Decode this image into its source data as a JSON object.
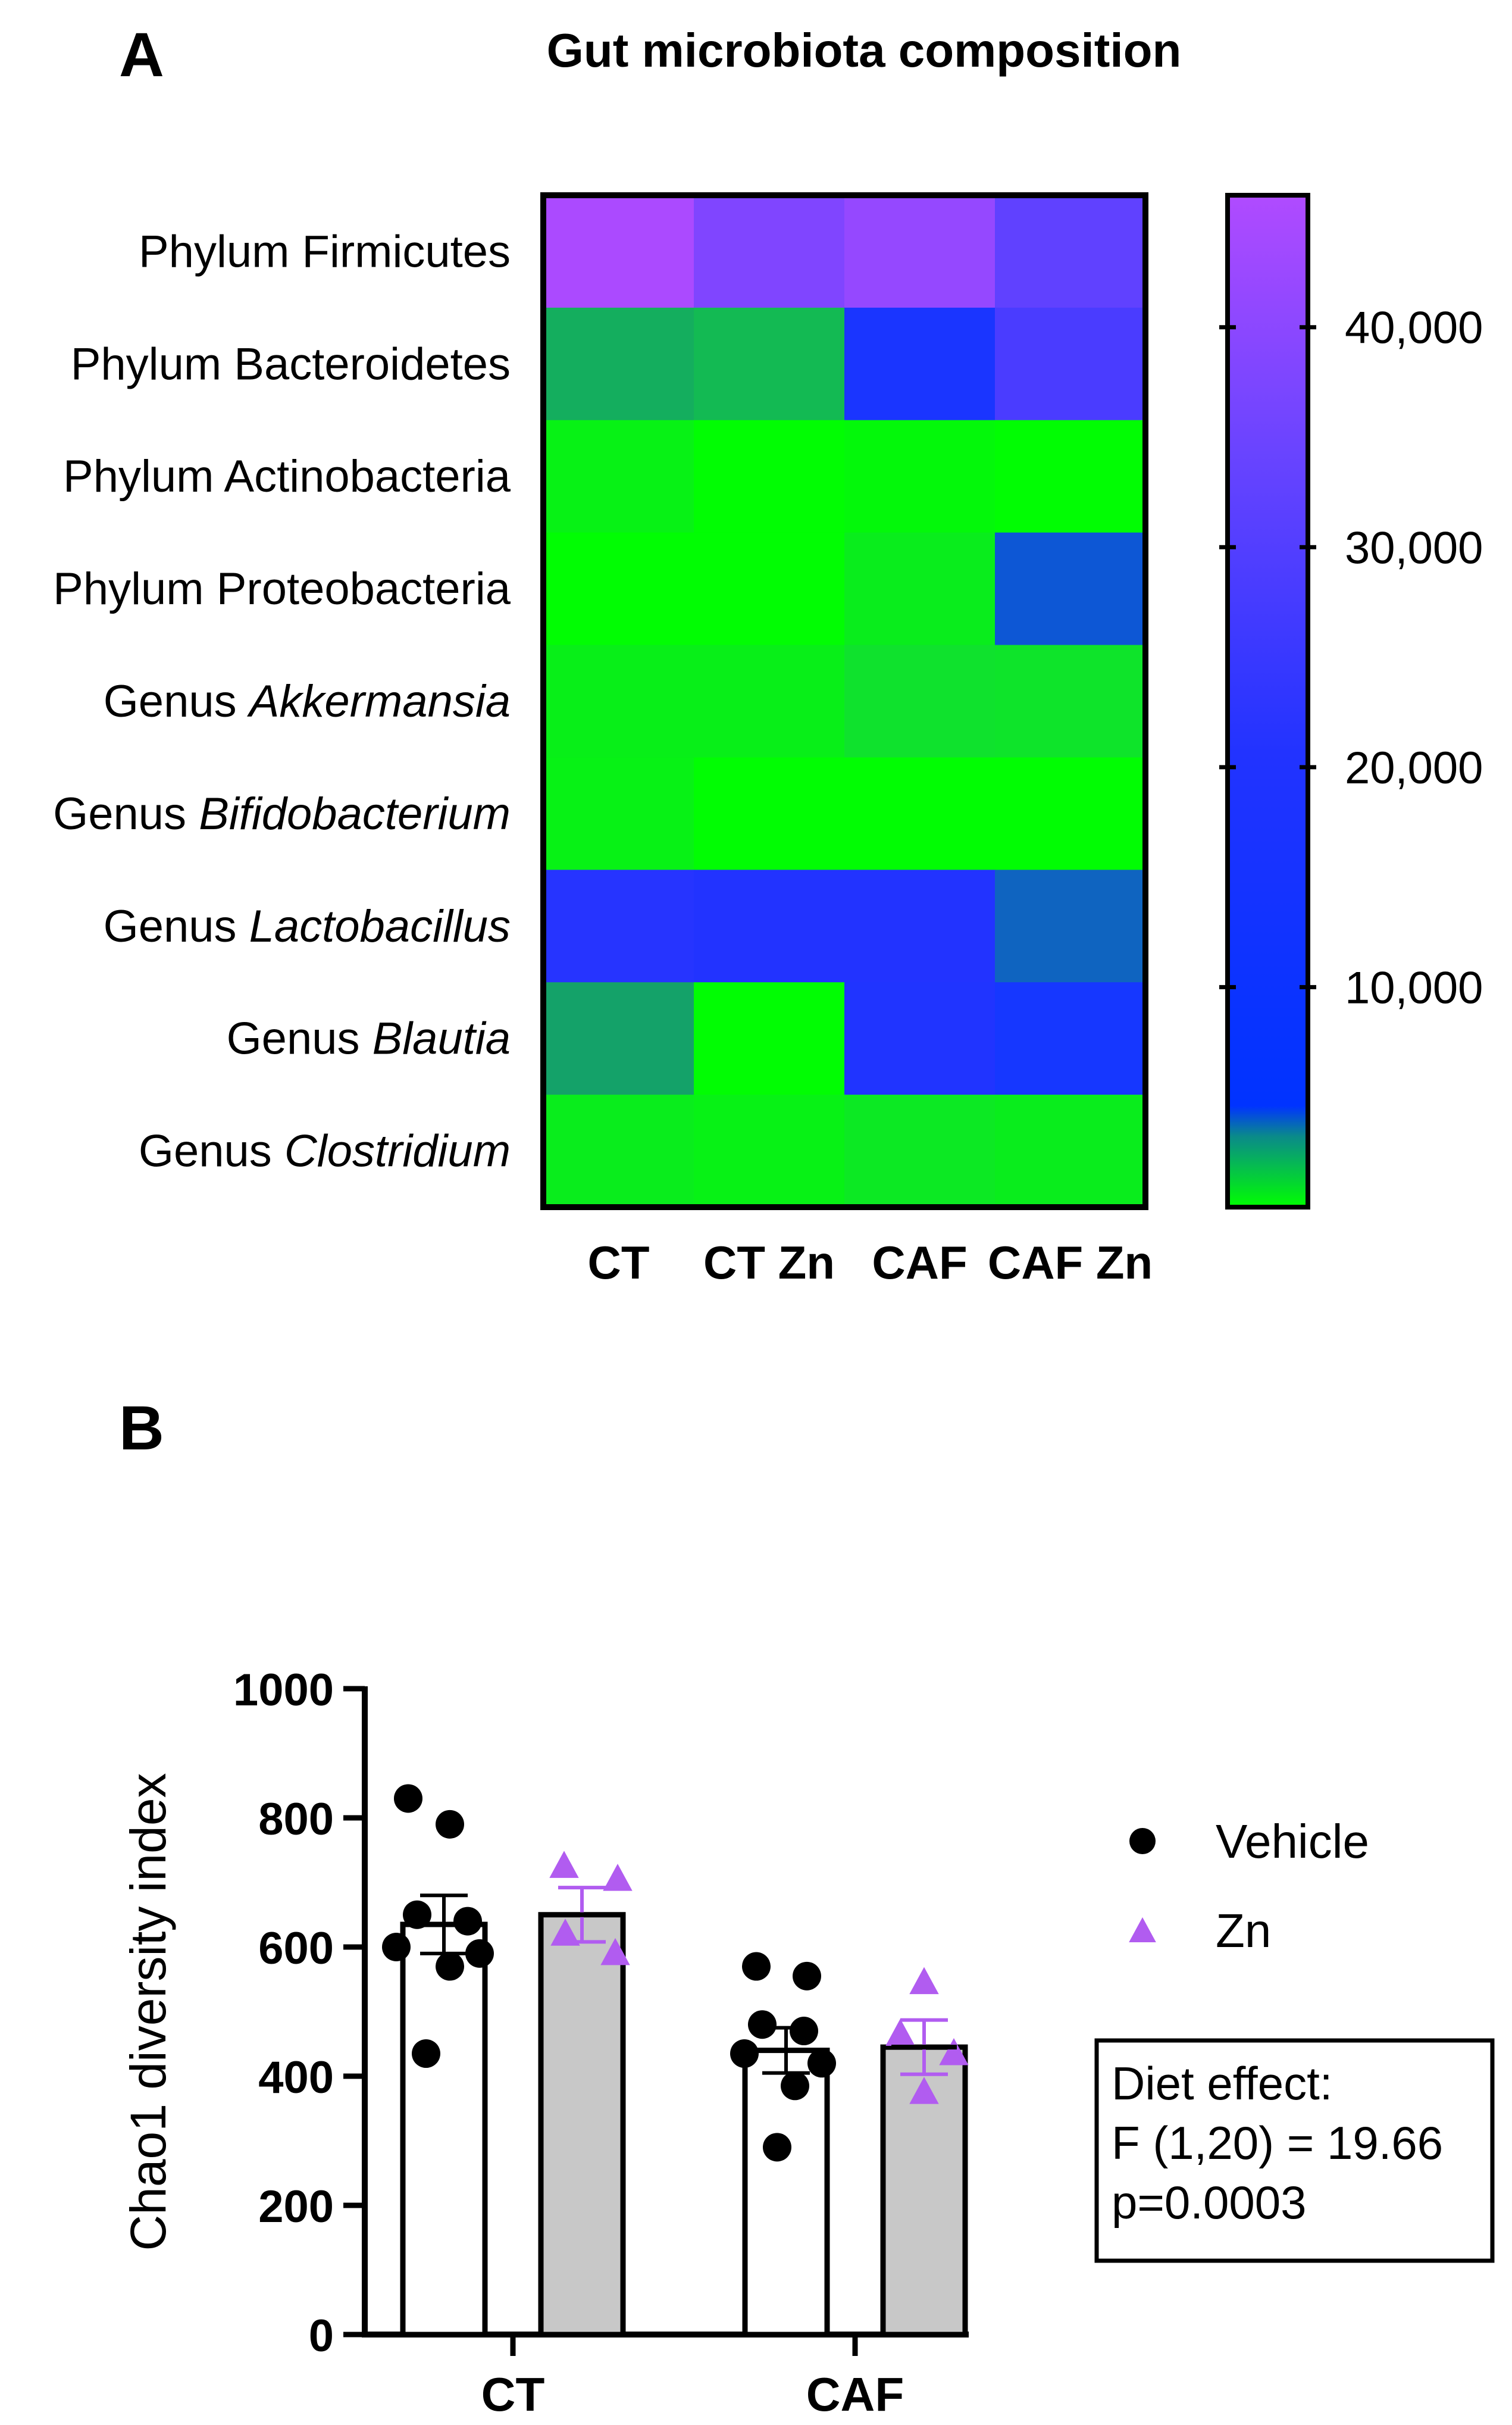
{
  "panel_a": {
    "label": "A",
    "title": "Gut microbiota composition"
  },
  "panel_b": {
    "label": "B",
    "stats_box": {
      "line1": "Diet effect:",
      "line2": "F (1,20) = 19.66",
      "line3": "p=0.0003"
    }
  },
  "colors": {
    "low": "#00ff00",
    "mid": "#0033ff",
    "high": "#b04bff",
    "vehicle": "#000000",
    "zn": "#b15cf0",
    "bar_vehicle_fill": "#ffffff",
    "bar_zn_fill": "#c8c8c8"
  },
  "chart_data": [
    {
      "type": "heatmap",
      "title": "Gut microbiota composition",
      "columns": [
        "CT",
        "CT Zn",
        "CAF",
        "CAF Zn"
      ],
      "rows": [
        {
          "prefix": "Phylum",
          "name": "Firmicutes",
          "italic": false
        },
        {
          "prefix": "Phylum",
          "name": "Bacteroidetes",
          "italic": false
        },
        {
          "prefix": "Phylum",
          "name": "Actinobacteria",
          "italic": false
        },
        {
          "prefix": "Phylum",
          "name": "Proteobacteria",
          "italic": false
        },
        {
          "prefix": "Genus",
          "name": "Akkermansia",
          "italic": true
        },
        {
          "prefix": "Genus",
          "name": "Bifidobacterium",
          "italic": true
        },
        {
          "prefix": "Genus",
          "name": "Lactobacillus",
          "italic": true
        },
        {
          "prefix": "Genus",
          "name": "Blautia",
          "italic": true
        },
        {
          "prefix": "Genus",
          "name": "Clostridium",
          "italic": true
        }
      ],
      "values": [
        [
          45000,
          37000,
          41000,
          31000
        ],
        [
          2200,
          2000,
          12000,
          26000
        ],
        [
          600,
          100,
          300,
          100
        ],
        [
          100,
          100,
          800,
          3500
        ],
        [
          700,
          700,
          1300,
          1200
        ],
        [
          600,
          100,
          100,
          100
        ],
        [
          17000,
          16000,
          16000,
          3300
        ],
        [
          2400,
          100,
          15000,
          10000
        ],
        [
          800,
          600,
          1000,
          800
        ]
      ],
      "colorbar": {
        "min": 0,
        "max": 46000,
        "ticks": [
          10000,
          20000,
          30000,
          40000
        ],
        "tick_labels": [
          "10,000",
          "20,000",
          "30,000",
          "40,000"
        ]
      }
    },
    {
      "type": "bar",
      "categories": [
        "CT",
        "CAF"
      ],
      "ylabel": "Chao1 diversity index",
      "xlabel": "",
      "ylim": [
        0,
        1000
      ],
      "yticks": [
        0,
        200,
        400,
        600,
        800,
        1000
      ],
      "ytick_labels": [
        "0",
        "200",
        "400",
        "600",
        "800",
        "1000"
      ],
      "series": [
        {
          "name": "Vehicle",
          "marker": "circle",
          "means": [
            635,
            440
          ],
          "sem": [
            45,
            35
          ],
          "points": [
            [
              830,
              790,
              650,
              640,
              600,
              590,
              570,
              435
            ],
            [
              570,
              555,
              480,
              470,
              435,
              420,
              385,
              290
            ]
          ]
        },
        {
          "name": "Zn",
          "marker": "triangle",
          "means": [
            650,
            445
          ],
          "sem": [
            42,
            42
          ],
          "points": [
            [
              725,
              705,
              620,
              590
            ],
            [
              545,
              465,
              435,
              375
            ]
          ]
        }
      ],
      "legend": [
        "Vehicle",
        "Zn"
      ],
      "legend_position": "right"
    }
  ]
}
